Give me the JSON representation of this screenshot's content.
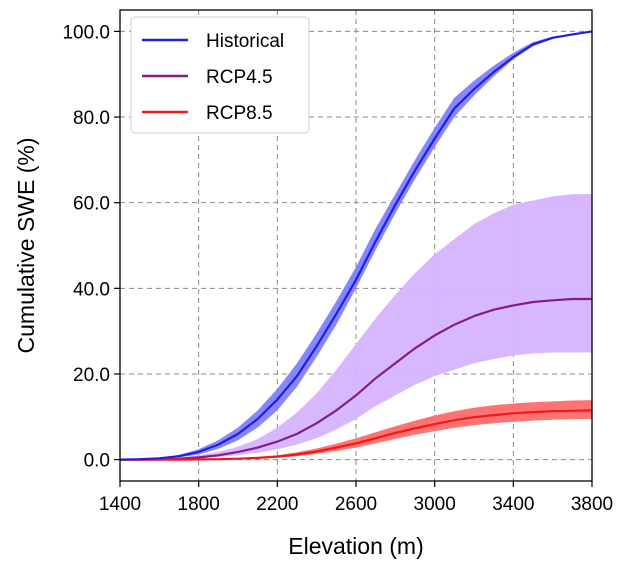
{
  "chart_data": {
    "type": "line",
    "title": "",
    "xlabel": "Elevation (m)",
    "ylabel": "Cumulative SWE (%)",
    "xlim": [
      1400,
      3800
    ],
    "ylim": [
      -5,
      105
    ],
    "xticks": [
      1400,
      1800,
      2200,
      2600,
      3000,
      3400,
      3800
    ],
    "xtick_labels": [
      "1400",
      "1800",
      "2200",
      "2600",
      "3000",
      "3400",
      "3800"
    ],
    "yticks": [
      0,
      20,
      40,
      60,
      80,
      100
    ],
    "ytick_labels": [
      "0.0",
      "20.0",
      "40.0",
      "60.0",
      "80.0",
      "100.0"
    ],
    "grid": true,
    "legend": "top-left",
    "x": [
      1400,
      1500,
      1600,
      1700,
      1800,
      1900,
      2000,
      2100,
      2200,
      2300,
      2400,
      2500,
      2600,
      2700,
      2800,
      2900,
      3000,
      3100,
      3200,
      3300,
      3400,
      3500,
      3600,
      3700,
      3800
    ],
    "series": [
      {
        "name": "Historical",
        "color": "#1f1fe0",
        "band_color": "#8080ff",
        "values": [
          0,
          0.1,
          0.3,
          0.8,
          1.8,
          3.5,
          6,
          9.5,
          14,
          19.5,
          26.5,
          34,
          42,
          51,
          59.5,
          67.5,
          75,
          82,
          86.5,
          90.5,
          94,
          97,
          98.5,
          99.3,
          100
        ],
        "lower": [
          0,
          0.05,
          0.2,
          0.5,
          1.2,
          2.5,
          4.5,
          7.5,
          11.5,
          17,
          24,
          31.5,
          40,
          49,
          57.5,
          65.5,
          73,
          80,
          85,
          89.5,
          93.5,
          96.5,
          98.3,
          99.2,
          100
        ],
        "upper": [
          0,
          0.15,
          0.4,
          1.1,
          2.4,
          4.5,
          7.5,
          11.5,
          16.5,
          22.5,
          29.5,
          37,
          45,
          54,
          62,
          70,
          77.5,
          84.5,
          88.5,
          92,
          95,
          97.5,
          98.8,
          99.5,
          100
        ]
      },
      {
        "name": "RCP4.5",
        "color": "#861c8c",
        "band_color": "#d5b4ff",
        "values": [
          0,
          0,
          0.05,
          0.2,
          0.5,
          1,
          1.8,
          2.8,
          4.2,
          6,
          8.5,
          11.5,
          15,
          19,
          22.5,
          26,
          29,
          31.5,
          33.5,
          35,
          36,
          36.8,
          37.2,
          37.5,
          37.5
        ],
        "lower": [
          0,
          0,
          0.02,
          0.1,
          0.3,
          0.6,
          1,
          1.6,
          2.4,
          3.5,
          5,
          7,
          9.5,
          12.5,
          15,
          17.5,
          19.5,
          21,
          22.5,
          23.5,
          24.3,
          24.8,
          25,
          25,
          25
        ],
        "upper": [
          0,
          0,
          0.1,
          0.4,
          1,
          1.8,
          3,
          4.8,
          7.5,
          11,
          15.5,
          21,
          27,
          33,
          38.5,
          43.5,
          48,
          51.5,
          55,
          57.5,
          59.5,
          60.5,
          61.5,
          62,
          62
        ]
      },
      {
        "name": "RCP8.5",
        "color": "#f01818",
        "band_color": "#ff6b6b",
        "values": [
          0,
          0,
          0,
          0,
          0.05,
          0.1,
          0.2,
          0.4,
          0.7,
          1.2,
          1.9,
          2.8,
          3.8,
          5,
          6.2,
          7.3,
          8.3,
          9.2,
          9.9,
          10.4,
          10.8,
          11.1,
          11.3,
          11.4,
          11.5
        ],
        "lower": [
          0,
          0,
          0,
          0,
          0.02,
          0.05,
          0.1,
          0.25,
          0.45,
          0.8,
          1.3,
          2,
          2.8,
          3.8,
          4.8,
          5.8,
          6.6,
          7.4,
          8,
          8.5,
          8.8,
          9.1,
          9.3,
          9.4,
          9.5
        ],
        "upper": [
          0,
          0,
          0,
          0,
          0.1,
          0.2,
          0.35,
          0.6,
          1,
          1.7,
          2.6,
          3.7,
          5,
          6.4,
          7.8,
          9.1,
          10.3,
          11.3,
          12.1,
          12.7,
          13.1,
          13.4,
          13.6,
          13.8,
          13.9
        ]
      }
    ]
  }
}
